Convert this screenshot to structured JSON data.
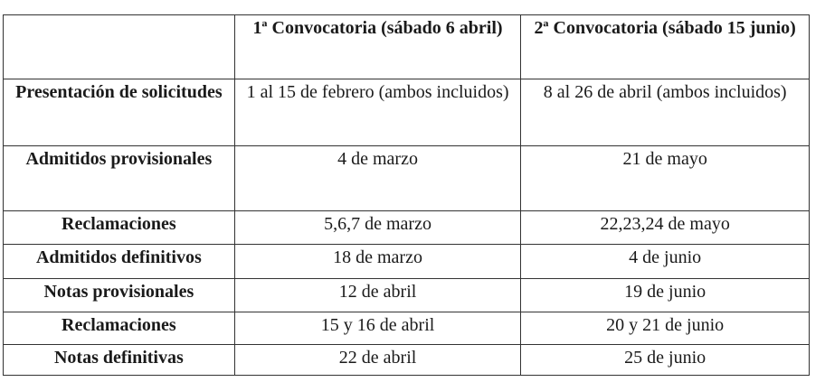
{
  "table": {
    "headers": [
      "",
      "1ª Convocatoria (sábado 6 abril)",
      "2ª Convocatoria (sábado 15 junio)"
    ],
    "rows": [
      [
        "Presentación de solicitudes",
        "1 al 15 de febrero (ambos incluidos)",
        "8 al 26 de abril (ambos incluidos)"
      ],
      [
        "Admitidos provisionales",
        "4 de marzo",
        "21 de mayo"
      ],
      [
        "Reclamaciones",
        "5,6,7 de marzo",
        "22,23,24 de mayo"
      ],
      [
        "Admitidos definitivos",
        "18 de marzo",
        "4 de junio"
      ],
      [
        "Notas provisionales",
        "12 de abril",
        "19 de junio"
      ],
      [
        "Reclamaciones",
        "15 y 16 de abril",
        "20 y 21 de junio"
      ],
      [
        "Notas definitivas",
        "22 de abril",
        "25 de junio"
      ]
    ]
  }
}
